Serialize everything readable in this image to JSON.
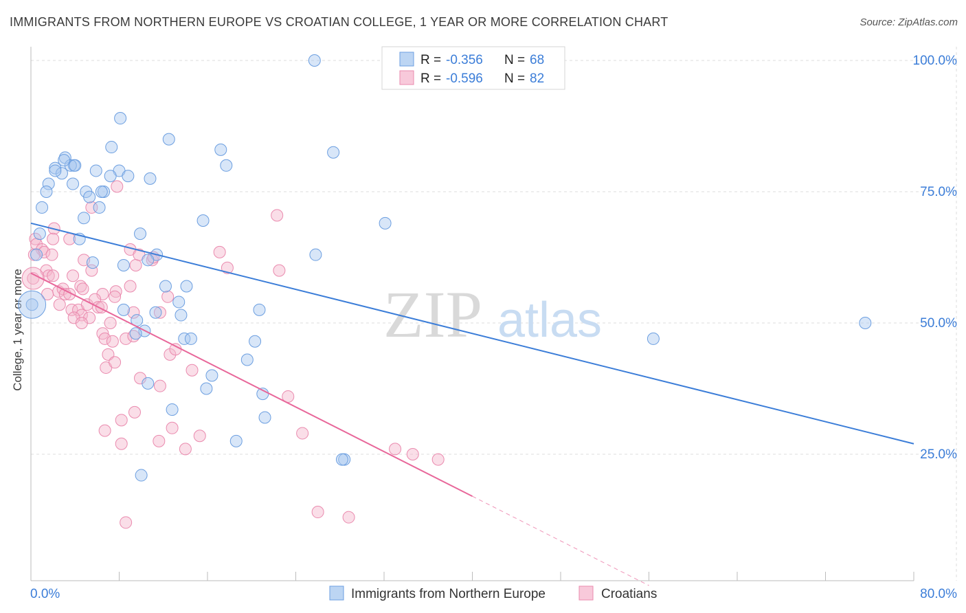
{
  "title": "IMMIGRANTS FROM NORTHERN EUROPE VS CROATIAN COLLEGE, 1 YEAR OR MORE CORRELATION CHART",
  "source": "Source: ZipAtlas.com",
  "watermark": {
    "zip": "ZIP",
    "atlas": "atlas"
  },
  "colors": {
    "blue": "#3b7dd8",
    "blue_fill": "#a9c8f0",
    "pink": "#e8679a",
    "pink_fill": "#f5b6cc",
    "axis_label": "#3b7dd8",
    "grid": "#dddddd"
  },
  "legend": {
    "rows": [
      {
        "r_label": "R = ",
        "r_value": "-0.356",
        "n_label": "N = ",
        "n_value": "68"
      },
      {
        "r_label": "R = ",
        "r_value": "-0.596",
        "n_label": "N = ",
        "n_value": "82"
      }
    ]
  },
  "chart_data": {
    "type": "scatter",
    "title": "IMMIGRANTS FROM NORTHERN EUROPE VS CROATIAN COLLEGE, 1 YEAR OR MORE CORRELATION CHART",
    "xlabel": "",
    "ylabel": "College, 1 year or more",
    "xlim": [
      0,
      80
    ],
    "ylim": [
      0,
      102
    ],
    "x_tick_labels": [
      "0.0%",
      "80.0%"
    ],
    "y_ticks": [
      25,
      50,
      75,
      100
    ],
    "y_tick_labels": [
      "25.0%",
      "50.0%",
      "75.0%",
      "100.0%"
    ],
    "grid": true,
    "legend_position": "bottom",
    "series": [
      {
        "name": "Immigrants from Northern Europe",
        "color": "#3b7dd8",
        "trend": {
          "x": [
            0,
            80
          ],
          "y": [
            69,
            27
          ]
        },
        "points": [
          [
            25.7,
            100
          ],
          [
            8.1,
            89
          ],
          [
            12.5,
            85
          ],
          [
            7.3,
            83.5
          ],
          [
            17.2,
            83
          ],
          [
            27.4,
            82.5
          ],
          [
            3.1,
            81.5
          ],
          [
            3.9,
            80
          ],
          [
            3.6,
            80
          ],
          [
            2.2,
            79.5
          ],
          [
            4.0,
            80
          ],
          [
            17.7,
            80
          ],
          [
            5.9,
            79
          ],
          [
            8.0,
            79
          ],
          [
            2.8,
            78.5
          ],
          [
            7.2,
            78
          ],
          [
            8.8,
            78
          ],
          [
            10.8,
            77.5
          ],
          [
            1.6,
            76.5
          ],
          [
            3.8,
            76.5
          ],
          [
            1.4,
            75
          ],
          [
            5.0,
            75
          ],
          [
            6.6,
            75
          ],
          [
            6.4,
            75
          ],
          [
            5.3,
            74
          ],
          [
            1.0,
            72
          ],
          [
            6.2,
            72
          ],
          [
            15.6,
            69.5
          ],
          [
            32.1,
            69
          ],
          [
            4.8,
            70
          ],
          [
            9.9,
            67
          ],
          [
            0.8,
            67
          ],
          [
            4.4,
            66
          ],
          [
            0.5,
            63
          ],
          [
            11.4,
            63
          ],
          [
            10.6,
            62
          ],
          [
            25.8,
            63
          ],
          [
            5.6,
            61.5
          ],
          [
            8.4,
            61
          ],
          [
            12.2,
            57
          ],
          [
            14.1,
            57
          ],
          [
            13.4,
            54
          ],
          [
            13.6,
            51.5
          ],
          [
            20.7,
            52.5
          ],
          [
            8.4,
            52.5
          ],
          [
            11.3,
            52
          ],
          [
            0.1,
            53.5
          ],
          [
            9.6,
            50.5
          ],
          [
            10.3,
            48.5
          ],
          [
            9.5,
            48
          ],
          [
            13.9,
            47
          ],
          [
            14.5,
            47
          ],
          [
            20.3,
            46.5
          ],
          [
            75.6,
            50
          ],
          [
            56.4,
            47
          ],
          [
            16.4,
            40
          ],
          [
            15.9,
            37.5
          ],
          [
            19.6,
            43
          ],
          [
            10.6,
            38.5
          ],
          [
            21.0,
            36.5
          ],
          [
            21.2,
            32
          ],
          [
            12.8,
            33.5
          ],
          [
            18.6,
            27.5
          ],
          [
            28.4,
            24
          ],
          [
            28.2,
            24
          ],
          [
            10.0,
            21
          ],
          [
            2.2,
            79
          ],
          [
            3.0,
            81
          ]
        ]
      },
      {
        "name": "Croatians",
        "color": "#e8679a",
        "trend": {
          "x": [
            0,
            40
          ],
          "y": [
            59.5,
            17
          ]
        },
        "trend_dashed": {
          "x": [
            40,
            56
          ],
          "y": [
            17,
            0
          ]
        },
        "points": [
          [
            0.2,
            58.5
          ],
          [
            0.4,
            66
          ],
          [
            0.5,
            65
          ],
          [
            1.0,
            64
          ],
          [
            1.2,
            63.5
          ],
          [
            1.9,
            63
          ],
          [
            3.5,
            66
          ],
          [
            2.1,
            68
          ],
          [
            1.4,
            60
          ],
          [
            1.6,
            59
          ],
          [
            2.0,
            59
          ],
          [
            2.5,
            56
          ],
          [
            2.9,
            56.5
          ],
          [
            3.1,
            55.5
          ],
          [
            3.5,
            55.5
          ],
          [
            3.8,
            59
          ],
          [
            4.5,
            57
          ],
          [
            4.7,
            56.5
          ],
          [
            1.5,
            55.5
          ],
          [
            2.6,
            53.5
          ],
          [
            3.7,
            52.5
          ],
          [
            4.3,
            52.5
          ],
          [
            4.6,
            51.5
          ],
          [
            3.9,
            51
          ],
          [
            5.1,
            53.5
          ],
          [
            5.3,
            51
          ],
          [
            4.6,
            50
          ],
          [
            5.5,
            60
          ],
          [
            4.8,
            62
          ],
          [
            5.5,
            72
          ],
          [
            7.8,
            76
          ],
          [
            9.0,
            64
          ],
          [
            9.5,
            61
          ],
          [
            9.8,
            63
          ],
          [
            11.0,
            62
          ],
          [
            11.1,
            62.5
          ],
          [
            6.5,
            55.5
          ],
          [
            7.7,
            56
          ],
          [
            7.6,
            55
          ],
          [
            9.0,
            57
          ],
          [
            5.8,
            54.5
          ],
          [
            6.1,
            53
          ],
          [
            6.4,
            53
          ],
          [
            7.2,
            50
          ],
          [
            9.3,
            52
          ],
          [
            11.7,
            52
          ],
          [
            12.4,
            55
          ],
          [
            12.6,
            44
          ],
          [
            13.1,
            45
          ],
          [
            14.6,
            41
          ],
          [
            8.6,
            47
          ],
          [
            9.3,
            47.5
          ],
          [
            6.5,
            48
          ],
          [
            6.7,
            47
          ],
          [
            7.4,
            46.5
          ],
          [
            7.0,
            44
          ],
          [
            6.8,
            41.5
          ],
          [
            7.6,
            42.5
          ],
          [
            9.9,
            39.5
          ],
          [
            11.7,
            38
          ],
          [
            8.2,
            31.5
          ],
          [
            9.4,
            33
          ],
          [
            6.7,
            29.5
          ],
          [
            8.2,
            27
          ],
          [
            11.6,
            27.5
          ],
          [
            12.8,
            30
          ],
          [
            14.0,
            26
          ],
          [
            15.3,
            28.5
          ],
          [
            17.1,
            63.5
          ],
          [
            17.8,
            60.5
          ],
          [
            22.3,
            70.5
          ],
          [
            22.5,
            60
          ],
          [
            23.3,
            36
          ],
          [
            24.6,
            29
          ],
          [
            33.0,
            26
          ],
          [
            34.6,
            25
          ],
          [
            36.9,
            24
          ],
          [
            26.0,
            14
          ],
          [
            28.8,
            13
          ],
          [
            8.6,
            12
          ],
          [
            2.0,
            66
          ],
          [
            0.3,
            63
          ]
        ]
      }
    ]
  },
  "bottom_legend": [
    {
      "label": "Immigrants from Northern Europe"
    },
    {
      "label": "Croatians"
    }
  ]
}
